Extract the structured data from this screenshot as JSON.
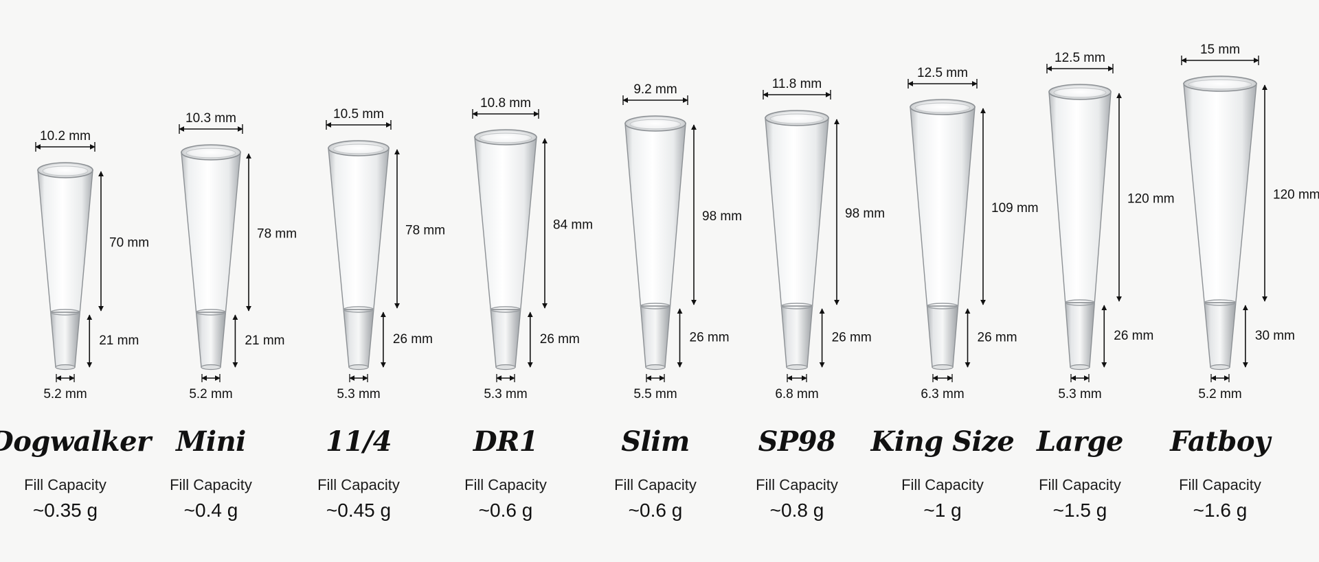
{
  "cones": [
    {
      "name": "Dogwalker",
      "top_diameter": "10.2 mm",
      "filter_length": "21 mm",
      "paper_length": "70 mm",
      "tip_diameter": "5.2 mm",
      "fill_label": "Fill Capacity",
      "fill_value": "~0.35 g"
    },
    {
      "name": "Mini",
      "top_diameter": "10.3 mm",
      "filter_length": "21 mm",
      "paper_length": "78 mm",
      "tip_diameter": "5.2 mm",
      "fill_label": "Fill Capacity",
      "fill_value": "~0.4 g"
    },
    {
      "name": "11/4",
      "top_diameter": "10.5 mm",
      "filter_length": "26 mm",
      "paper_length": "78 mm",
      "tip_diameter": "5.3 mm",
      "fill_label": "Fill Capacity",
      "fill_value": "~0.45 g"
    },
    {
      "name": "DR1",
      "top_diameter": "10.8 mm",
      "filter_length": "26 mm",
      "paper_length": "84 mm",
      "tip_diameter": "5.3 mm",
      "fill_label": "Fill Capacity",
      "fill_value": "~0.6 g"
    },
    {
      "name": "Slim",
      "top_diameter": "9.2 mm",
      "filter_length": "26 mm",
      "paper_length": "98 mm",
      "tip_diameter": "5.5 mm",
      "fill_label": "Fill Capacity",
      "fill_value": "~0.6 g"
    },
    {
      "name": "SP98",
      "top_diameter": "11.8 mm",
      "filter_length": "26 mm",
      "paper_length": "98 mm",
      "tip_diameter": "6.8 mm",
      "fill_label": "Fill Capacity",
      "fill_value": "~0.8 g"
    },
    {
      "name": "King Size",
      "top_diameter": "12.5 mm",
      "filter_length": "26 mm",
      "paper_length": "109 mm",
      "tip_diameter": "6.3 mm",
      "fill_label": "Fill Capacity",
      "fill_value": "~1 g"
    },
    {
      "name": "Large",
      "top_diameter": "12.5 mm",
      "filter_length": "26 mm",
      "paper_length": "120 mm",
      "tip_diameter": "5.3 mm",
      "fill_label": "Fill Capacity",
      "fill_value": "~1.5 g"
    },
    {
      "name": "Fatboy",
      "top_diameter": "15 mm",
      "filter_length": "30 mm",
      "paper_length": "120 mm",
      "tip_diameter": "5.2 mm",
      "fill_label": "Fill Capacity",
      "fill_value": "~1.6 g"
    }
  ]
}
